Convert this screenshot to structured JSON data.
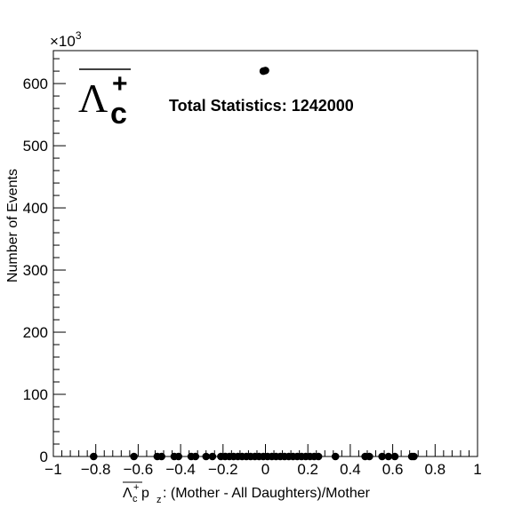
{
  "chart_data": {
    "type": "scatter",
    "xlabel_tail": " p",
    "xlabel_sub": "z",
    "xlabel_rest": ": (Mother - All Daughters)/Mother",
    "ylabel": "Number of Events",
    "y_multiplier_base": "×10",
    "y_multiplier_exp": "3",
    "particle_symbol": "Λ",
    "particle_sub": "c",
    "particle_sup": "+",
    "statistics_text": "Total Statistics: 1242000",
    "xlim": [
      -1,
      1
    ],
    "ylim": [
      0,
      653
    ],
    "x_ticks": [
      "−1",
      "−0.8",
      "−0.6",
      "−0.4",
      "−0.2",
      "0",
      "0.2",
      "0.4",
      "0.6",
      "0.8",
      "1"
    ],
    "y_ticks": [
      "0",
      "100",
      "200",
      "300",
      "400",
      "500",
      "600"
    ],
    "grid": false,
    "marker_color": "#000000",
    "points": [
      {
        "x": -0.01,
        "y": 620
      },
      {
        "x": 0.0,
        "y": 621
      },
      {
        "x": -0.81,
        "y": 0
      },
      {
        "x": -0.62,
        "y": 0
      },
      {
        "x": -0.51,
        "y": 0
      },
      {
        "x": -0.49,
        "y": 0
      },
      {
        "x": -0.43,
        "y": 0
      },
      {
        "x": -0.41,
        "y": 0
      },
      {
        "x": -0.35,
        "y": 0
      },
      {
        "x": -0.33,
        "y": 0
      },
      {
        "x": -0.28,
        "y": 0
      },
      {
        "x": -0.25,
        "y": 0
      },
      {
        "x": -0.21,
        "y": 0
      },
      {
        "x": -0.19,
        "y": 0
      },
      {
        "x": -0.17,
        "y": 0
      },
      {
        "x": -0.15,
        "y": 0
      },
      {
        "x": -0.13,
        "y": 0
      },
      {
        "x": -0.11,
        "y": 0
      },
      {
        "x": -0.09,
        "y": 0
      },
      {
        "x": -0.07,
        "y": 0
      },
      {
        "x": -0.05,
        "y": 0
      },
      {
        "x": -0.03,
        "y": 0
      },
      {
        "x": -0.01,
        "y": 0
      },
      {
        "x": 0.01,
        "y": 0
      },
      {
        "x": 0.03,
        "y": 0
      },
      {
        "x": 0.05,
        "y": 0
      },
      {
        "x": 0.07,
        "y": 0
      },
      {
        "x": 0.09,
        "y": 0
      },
      {
        "x": 0.11,
        "y": 0
      },
      {
        "x": 0.13,
        "y": 0
      },
      {
        "x": 0.15,
        "y": 0
      },
      {
        "x": 0.17,
        "y": 0
      },
      {
        "x": 0.19,
        "y": 0
      },
      {
        "x": 0.21,
        "y": 0
      },
      {
        "x": 0.23,
        "y": 0
      },
      {
        "x": 0.25,
        "y": 0
      },
      {
        "x": 0.33,
        "y": 0
      },
      {
        "x": 0.47,
        "y": 0
      },
      {
        "x": 0.49,
        "y": 0
      },
      {
        "x": 0.55,
        "y": 0
      },
      {
        "x": 0.58,
        "y": 0
      },
      {
        "x": 0.61,
        "y": 0
      },
      {
        "x": 0.69,
        "y": 0
      },
      {
        "x": 0.7,
        "y": 0
      }
    ]
  }
}
